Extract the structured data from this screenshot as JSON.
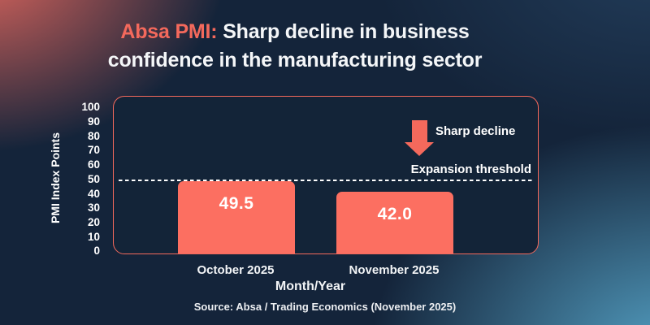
{
  "title": {
    "accent": "Absa PMI:",
    "line1_rest": "Sharp decline in business",
    "line2": "confidence in the manufacturing sector"
  },
  "chart_data": {
    "type": "bar",
    "title": "Absa PMI: Sharp decline in business confidence in the manufacturing sector",
    "categories": [
      "October 2025",
      "November 2025"
    ],
    "values": [
      49.5,
      42.0
    ],
    "bar_labels": [
      "49.5",
      "42.0"
    ],
    "xlabel": "Month/Year",
    "ylabel": "PMI Index Points",
    "ylim": [
      0,
      100
    ],
    "yticks": [
      0,
      10,
      20,
      30,
      40,
      50,
      60,
      70,
      80,
      90,
      100
    ],
    "grid": false,
    "legend": "none",
    "threshold": {
      "value": 50,
      "label": "Expansion threshold",
      "style": "white-dashed"
    },
    "annotation": {
      "label": "Sharp decline",
      "icon": "down-arrow"
    }
  },
  "source": "Source: Absa / Trading Economics (November 2025)",
  "colors": {
    "accent_coral": "#F4695C",
    "bar_fill": "#FC6F61",
    "background_navy": "#14243A",
    "plot_background": "#132438",
    "glow_top_left": "#EB6A5F",
    "glow_bottom_right": "#58A8CC",
    "text": "#FFFFFF"
  }
}
